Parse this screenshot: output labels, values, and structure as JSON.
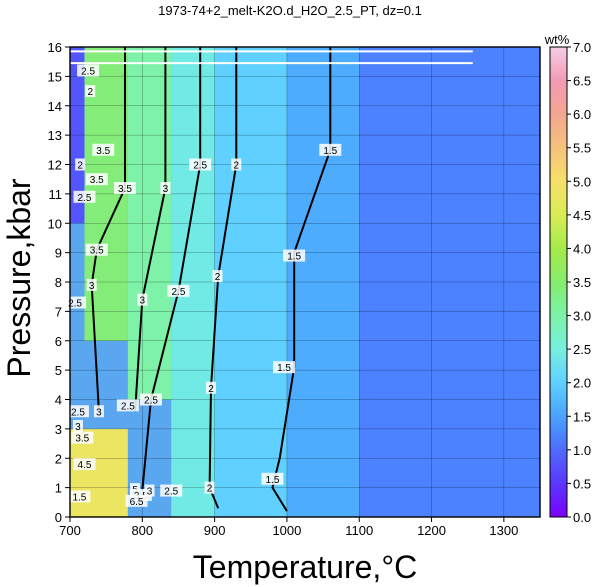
{
  "chart_data": {
    "type": "heatmap",
    "title": "1973-74+2_melt-K2O.d_H2O_2.5_PT, dz=0.1",
    "xlabel": "Temperature,°C",
    "ylabel": "Pressure,kbar",
    "xlim": [
      700,
      1350
    ],
    "ylim": [
      0,
      16
    ],
    "x_ticks": [
      700,
      800,
      900,
      1000,
      1100,
      1200,
      1300
    ],
    "y_ticks": [
      0,
      1,
      2,
      3,
      4,
      5,
      6,
      7,
      8,
      9,
      10,
      11,
      12,
      13,
      14,
      15,
      16
    ],
    "grid": true,
    "colorbar": {
      "label": "wt%",
      "range": [
        0.0,
        7.0
      ],
      "ticks": [
        "0.0",
        "0.5",
        "1.0",
        "1.5",
        "2.0",
        "2.5",
        "3.0",
        "3.5",
        "4.0",
        "4.5",
        "5.0",
        "5.5",
        "6.0",
        "6.5",
        "7.0"
      ],
      "colors": [
        "#7b00ff",
        "#5a36ff",
        "#4e6cff",
        "#4aa3ff",
        "#5fd0ff",
        "#76f0e0",
        "#7df2a8",
        "#86ec6e",
        "#a6ea4b",
        "#d9ec55",
        "#f7e06a",
        "#f5c27d",
        "#f2a790",
        "#f39bb5",
        "#f6cde6"
      ]
    },
    "regions": [
      {
        "T": [
          1100,
          1350
        ],
        "P": [
          0,
          16
        ],
        "value": 1.2
      },
      {
        "T": [
          1000,
          1100
        ],
        "P": [
          0,
          16
        ],
        "value": 1.6
      },
      {
        "T": [
          900,
          1000
        ],
        "P": [
          0,
          16
        ],
        "value": 2.0
      },
      {
        "T": [
          840,
          900
        ],
        "P": [
          0,
          16
        ],
        "value": 2.4
      },
      {
        "T": [
          780,
          840
        ],
        "P": [
          4,
          16
        ],
        "value": 3.0
      },
      {
        "T": [
          720,
          780
        ],
        "P": [
          6,
          16
        ],
        "value": 3.4
      },
      {
        "T": [
          700,
          720
        ],
        "P": [
          10,
          16
        ],
        "value": 0.8
      },
      {
        "T": [
          700,
          780
        ],
        "P": [
          0,
          3
        ],
        "value": 4.8
      }
    ],
    "contour_labels": [
      {
        "text": "2.5",
        "T": 725,
        "P": 15.2
      },
      {
        "text": "2",
        "T": 728,
        "P": 14.5
      },
      {
        "text": "3.5",
        "T": 746,
        "P": 12.5
      },
      {
        "text": "2",
        "T": 714,
        "P": 12.0
      },
      {
        "text": "2.5",
        "T": 720,
        "P": 10.9
      },
      {
        "text": "3.5",
        "T": 737,
        "P": 11.5
      },
      {
        "text": "3.5",
        "T": 776,
        "P": 11.2
      },
      {
        "text": "3",
        "T": 832,
        "P": 11.2
      },
      {
        "text": "2.5",
        "T": 880,
        "P": 12.0
      },
      {
        "text": "2",
        "T": 930,
        "P": 12.0
      },
      {
        "text": "1.5",
        "T": 1060,
        "P": 12.5
      },
      {
        "text": "3.5",
        "T": 737,
        "P": 9.1
      },
      {
        "text": "3",
        "T": 730,
        "P": 7.9
      },
      {
        "text": "2.5",
        "T": 707,
        "P": 7.3
      },
      {
        "text": "3",
        "T": 800,
        "P": 7.4
      },
      {
        "text": "2.5",
        "T": 850,
        "P": 7.7
      },
      {
        "text": "2",
        "T": 904,
        "P": 8.2
      },
      {
        "text": "1.5",
        "T": 1010,
        "P": 8.9
      },
      {
        "text": "1.5",
        "T": 996,
        "P": 5.1
      },
      {
        "text": "2",
        "T": 895,
        "P": 4.4
      },
      {
        "text": "2.5",
        "T": 812,
        "P": 4.0
      },
      {
        "text": "2.5",
        "T": 780,
        "P": 3.8
      },
      {
        "text": "3",
        "T": 740,
        "P": 3.6
      },
      {
        "text": "2.5",
        "T": 711,
        "P": 3.6
      },
      {
        "text": "3",
        "T": 711,
        "P": 3.1
      },
      {
        "text": "3.5",
        "T": 717,
        "P": 2.7
      },
      {
        "text": "4.5",
        "T": 720,
        "P": 1.8
      },
      {
        "text": "1.5",
        "T": 980,
        "P": 1.3
      },
      {
        "text": "2",
        "T": 893,
        "P": 1.0
      },
      {
        "text": "1.5",
        "T": 713,
        "P": 0.7
      },
      {
        "text": "5",
        "T": 790,
        "P": 0.95
      },
      {
        "text": "3.5",
        "T": 798,
        "P": 0.75
      },
      {
        "text": "6.5",
        "T": 792,
        "P": 0.55
      },
      {
        "text": "3",
        "T": 810,
        "P": 0.9
      },
      {
        "text": "2.5",
        "T": 840,
        "P": 0.9
      }
    ]
  }
}
